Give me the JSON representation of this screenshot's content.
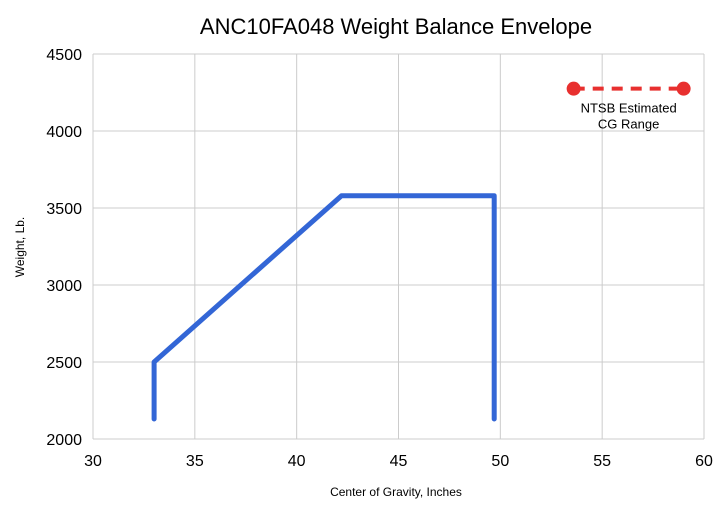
{
  "chart_data": {
    "type": "line",
    "title": "ANC10FA048 Weight Balance Envelope",
    "xlabel": "Center of Gravity, Inches",
    "ylabel": "Weight, Lb.",
    "xlim": [
      30,
      60
    ],
    "ylim": [
      2000,
      4500
    ],
    "x_ticks": [
      30,
      35,
      40,
      45,
      50,
      55,
      60
    ],
    "y_ticks": [
      2000,
      2500,
      3000,
      3500,
      4000,
      4500
    ],
    "grid": true,
    "series": [
      {
        "style": "solid",
        "color": "#3366d6",
        "points": [
          {
            "x": 33.0,
            "y": 2130
          },
          {
            "x": 33.0,
            "y": 2500
          },
          {
            "x": 42.2,
            "y": 3580
          },
          {
            "x": 49.7,
            "y": 3580
          },
          {
            "x": 49.7,
            "y": 2130
          }
        ]
      },
      {
        "name": "NTSB Estimated CG Range",
        "style": "dashed",
        "color": "#e8302f",
        "marker": "circle",
        "points": [
          {
            "x": 53.6,
            "y": 4275
          },
          {
            "x": 59.0,
            "y": 4275
          }
        ]
      }
    ],
    "annotations": [
      {
        "lines": [
          "NTSB Estimated",
          "CG Range"
        ],
        "x": 56.3,
        "y": 4275
      }
    ]
  }
}
